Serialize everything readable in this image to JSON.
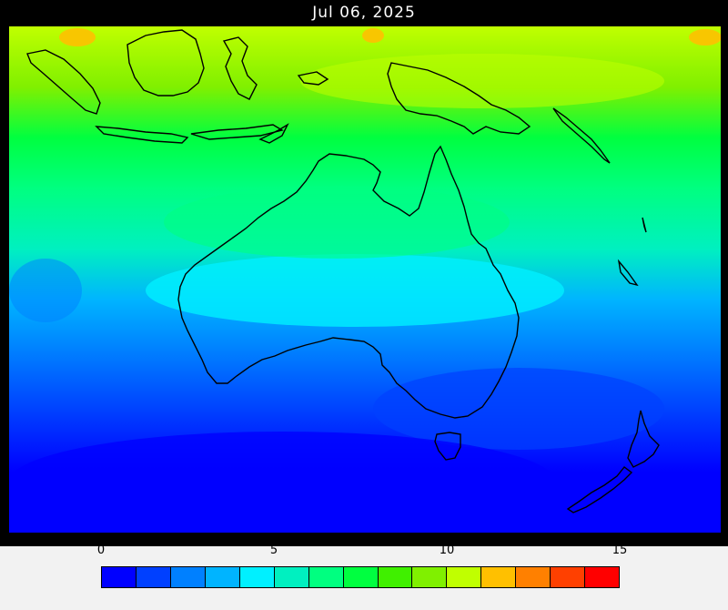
{
  "title": "Jul 06, 2025",
  "legend": {
    "ticks": [
      "0",
      "5",
      "10",
      "15"
    ],
    "tick_values": [
      0,
      5,
      10,
      15
    ],
    "min": 0,
    "max": 15,
    "colors": [
      "#0000ff",
      "#0040ff",
      "#0080ff",
      "#00b4ff",
      "#00f0ff",
      "#00f0c0",
      "#00ff80",
      "#00ff40",
      "#40f000",
      "#80f000",
      "#c0ff00",
      "#ffc000",
      "#ff8000",
      "#ff4000",
      "#ff0000"
    ]
  },
  "map": {
    "region": "Australia and surrounding waters",
    "field_colors": {
      "deep": "#0000ff",
      "blue": "#0040ff",
      "mid_blue": "#0080ff",
      "sky": "#00b4ff",
      "cyan": "#00f0ff",
      "teal": "#00f0c0",
      "green_light": "#00ff80",
      "green": "#00ff40",
      "lime": "#40f000",
      "yellow_green": "#80f000",
      "yellow": "#c0ff00",
      "orange": "#ffc000"
    },
    "coastline_color": "#000000"
  }
}
